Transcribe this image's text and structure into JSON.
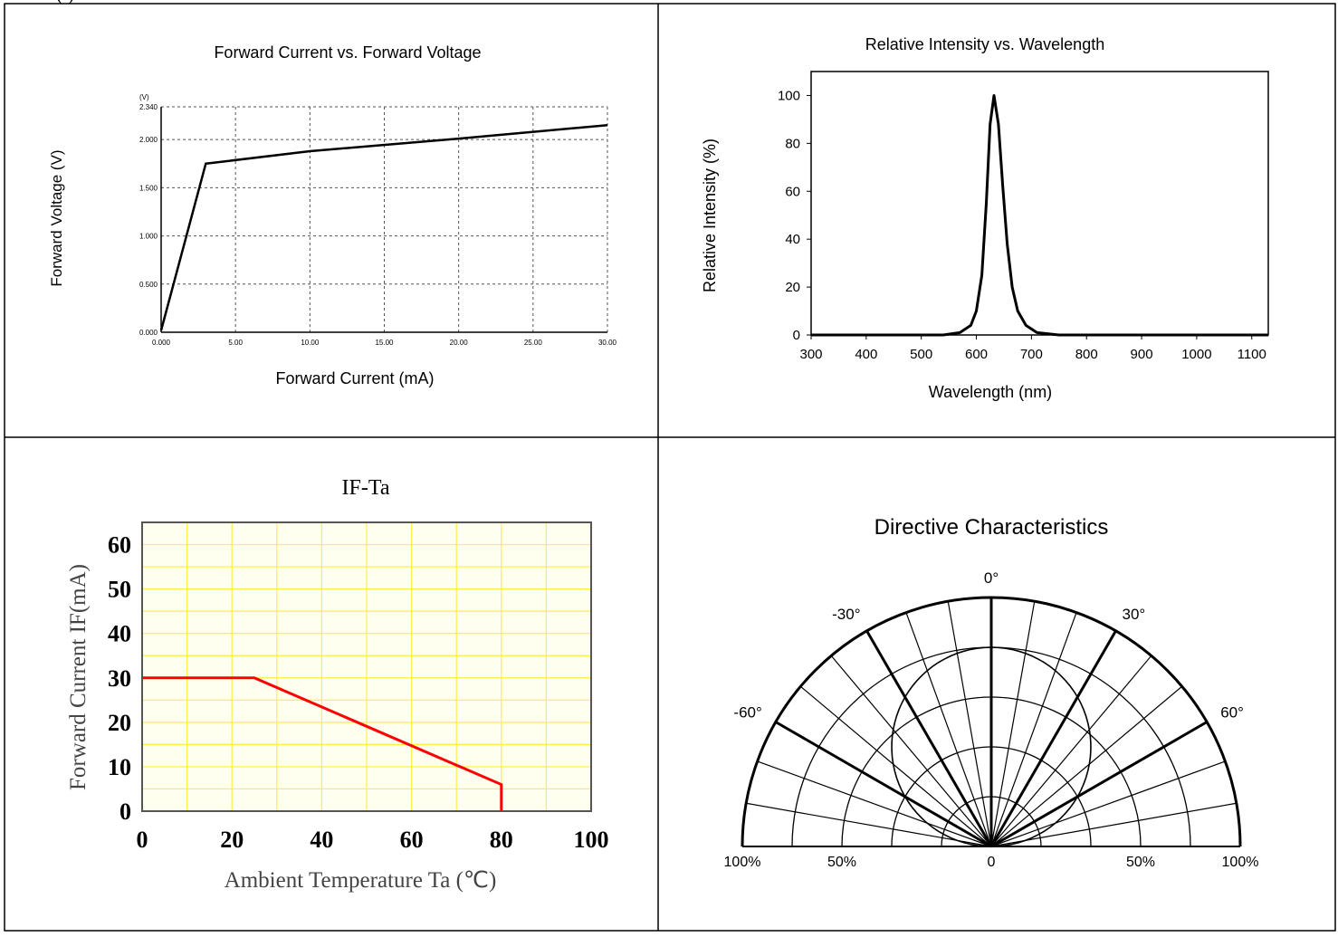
{
  "page": {
    "top_fragment": "(      )"
  },
  "charts": {
    "fv": {
      "type": "line",
      "title": "Forward Current vs. Forward Voltage",
      "xlabel": "Forward Current (mA)",
      "ylabel": "Forward Voltage (V)",
      "yunit": "(V)",
      "xlim": [
        0,
        30
      ],
      "ylim": [
        0,
        2.34
      ],
      "xticks": [
        0,
        5,
        10,
        15,
        20,
        25,
        30
      ],
      "xtick_labels": [
        "0.000",
        "5.00",
        "10.00",
        "15.00",
        "20.00",
        "25.00",
        "30.00"
      ],
      "yticks": [
        0,
        0.5,
        1.0,
        1.5,
        2.0,
        2.34
      ],
      "ytick_labels": [
        "0.000",
        "0.500",
        "1.000",
        "1.500",
        "2.000",
        "2.340"
      ],
      "grid": true,
      "series": [
        {
          "x": [
            0,
            3,
            10,
            20,
            30
          ],
          "y": [
            0.02,
            1.75,
            1.88,
            2.01,
            2.15
          ]
        }
      ],
      "color": "#000000"
    },
    "spectrum": {
      "type": "line",
      "title": "Relative Intensity vs. Wavelength",
      "xlabel": "Wavelength (nm)",
      "ylabel": "Relative Intensity (%)",
      "xlim": [
        300,
        1130
      ],
      "ylim": [
        0,
        110
      ],
      "xticks": [
        300,
        400,
        500,
        600,
        700,
        800,
        900,
        1000,
        1100
      ],
      "yticks": [
        0,
        20,
        40,
        60,
        80,
        100
      ],
      "grid": false,
      "peak_nm": 632,
      "series": [
        {
          "x": [
            300,
            540,
            570,
            590,
            600,
            610,
            618,
            625,
            632,
            640,
            648,
            656,
            665,
            675,
            690,
            710,
            750,
            1130
          ],
          "y": [
            0,
            0,
            1,
            4,
            10,
            25,
            55,
            88,
            100,
            88,
            62,
            38,
            20,
            10,
            4,
            1,
            0,
            0
          ]
        }
      ],
      "color": "#000000"
    },
    "ifta": {
      "type": "line",
      "title": "IF-Ta",
      "xlabel": "Ambient Temperature Ta (℃)",
      "ylabel": "Forward Current IF(mA)",
      "xlim": [
        0,
        100
      ],
      "ylim": [
        0,
        65
      ],
      "xticks": [
        0,
        20,
        40,
        60,
        80,
        100
      ],
      "yticks": [
        0,
        10,
        20,
        30,
        40,
        50,
        60
      ],
      "grid": true,
      "plot_bg": "#fffff0",
      "grid_color": "#ffee44",
      "series": [
        {
          "x": [
            0,
            25,
            80,
            80
          ],
          "y": [
            30,
            30,
            6,
            0
          ]
        }
      ],
      "color": "#ff0000"
    },
    "polar": {
      "type": "polar",
      "title": "Directive Characteristics",
      "angle_labels": [
        "0°",
        "-30°",
        "30°",
        "-60°",
        "60°"
      ],
      "angles": [
        0,
        -30,
        30,
        -60,
        60
      ],
      "radial_labels": [
        "100%",
        "50%",
        "0",
        "50%",
        "100%"
      ],
      "radial_values": [
        100,
        50,
        0,
        50,
        100
      ],
      "pattern_half_angle": 60
    }
  }
}
